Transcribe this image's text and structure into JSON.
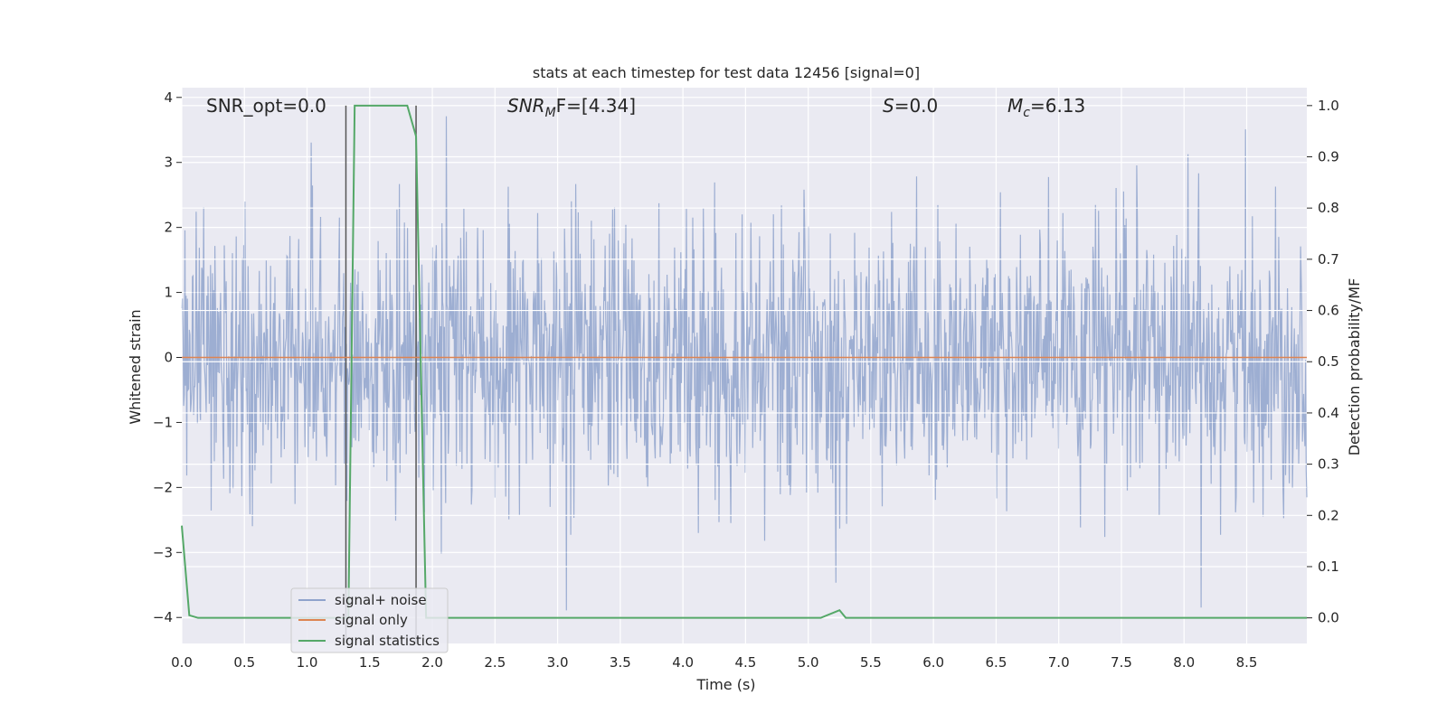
{
  "chart_data": {
    "type": "line",
    "title": "stats at each timestep for test data 12456 [signal=0]",
    "xlabel": "Time (s)",
    "ylabel_left": "Whitened strain",
    "ylabel_right": "Detection probability/MF",
    "xlim": [
      0.0,
      8.98
    ],
    "ylim_left": [
      -4.4,
      4.15
    ],
    "ylim_right": [
      -0.05,
      1.035
    ],
    "x_ticks": [
      "0.0",
      "0.5",
      "1.0",
      "1.5",
      "2.0",
      "2.5",
      "3.0",
      "3.5",
      "4.0",
      "4.5",
      "5.0",
      "5.5",
      "6.0",
      "6.5",
      "7.0",
      "7.5",
      "8.0",
      "8.5"
    ],
    "y_ticks_left": [
      "−4",
      "−3",
      "−2",
      "−1",
      "0",
      "1",
      "2",
      "3",
      "4"
    ],
    "y_ticks_right": [
      "0.0",
      "0.1",
      "0.2",
      "0.3",
      "0.4",
      "0.5",
      "0.6",
      "0.7",
      "0.8",
      "0.9",
      "1.0"
    ],
    "grid": true,
    "legend_position": "lower-left",
    "annotations": {
      "snr_opt": "SNR_opt=0.0",
      "snr_mf_main": "SNR",
      "snr_mf_sub": "M",
      "snr_mf_tail": "F=[4.34]",
      "s_main": "S",
      "s_tail": "=0.0",
      "mc_main": "M",
      "mc_sub": "c",
      "mc_tail": "=6.13"
    },
    "vertical_markers": [
      1.31,
      1.87
    ],
    "series": [
      {
        "name": "signal+ noise",
        "color": "#8fa3cc",
        "axis": "left",
        "description_values": {
          "noise_rms": 1.0,
          "envelope_min": -3.9,
          "envelope_max": 3.8
        }
      },
      {
        "name": "signal only",
        "color": "#dd8452",
        "axis": "left",
        "x": [
          0.0,
          8.98
        ],
        "y": [
          0.0,
          0.0
        ]
      },
      {
        "name": "signal statistics",
        "color": "#55a868",
        "axis": "right",
        "x": [
          0.0,
          0.06,
          0.13,
          1.31,
          1.33,
          1.38,
          1.8,
          1.87,
          1.95,
          2.0,
          5.1,
          5.25,
          5.3,
          8.98
        ],
        "y": [
          0.18,
          0.005,
          0.0,
          0.0,
          0.0,
          1.0,
          1.0,
          0.94,
          0.0,
          0.0,
          0.0,
          0.015,
          0.0,
          0.0
        ]
      }
    ]
  },
  "colors": {
    "plot_bg": "#eaeaf2",
    "grid": "#ffffff",
    "markers": "#555555"
  }
}
